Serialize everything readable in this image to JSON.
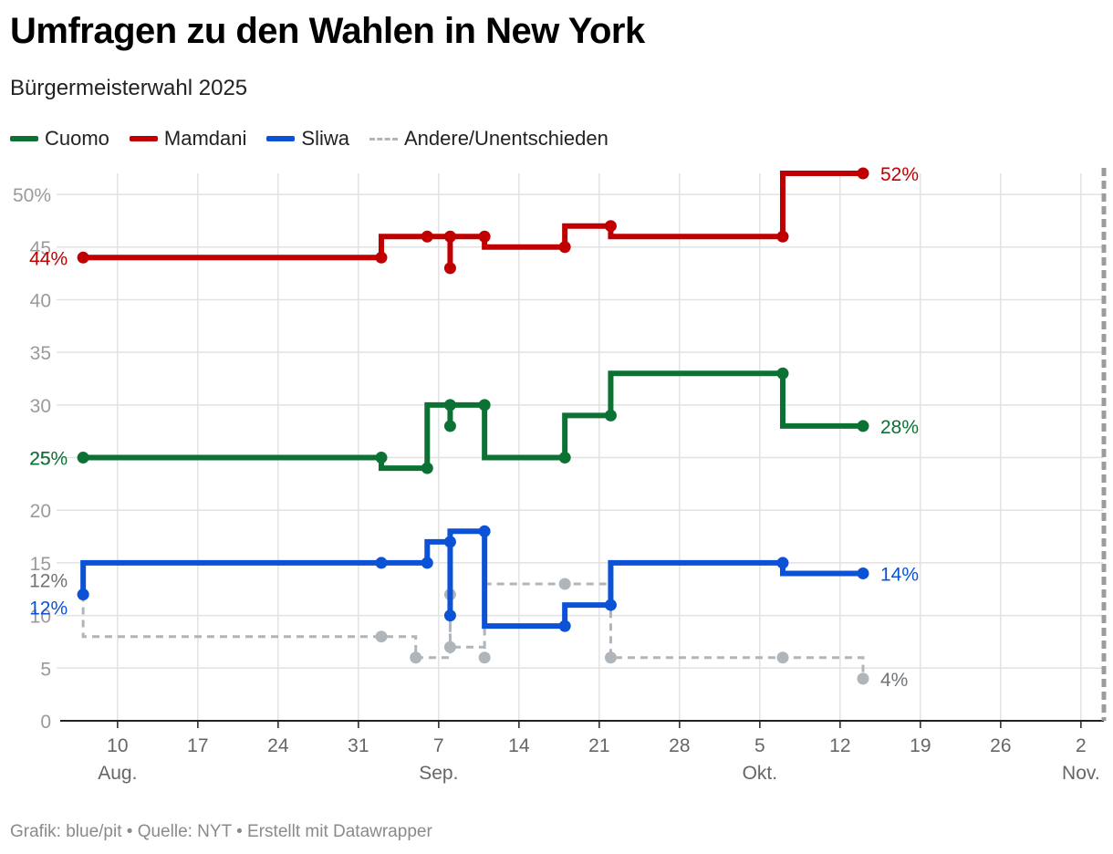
{
  "header": {
    "title": "Umfragen zu den Wahlen in New York",
    "subtitle": "Bürgermeisterwahl 2025"
  },
  "footer": {
    "credit": "Grafik: blue/pit • Quelle: NYT • Erstellt mit Datawrapper"
  },
  "chart_data": {
    "type": "line",
    "step": true,
    "title": "Umfragen zu den Wahlen in New York",
    "subtitle": "Bürgermeisterwahl 2025",
    "x_scale": "date",
    "xlim": [
      "2025-08-05",
      "2025-11-04"
    ],
    "ylim": [
      0,
      52
    ],
    "y_ticks": [
      0,
      5,
      10,
      15,
      20,
      25,
      30,
      35,
      40,
      45,
      50
    ],
    "y_tick_labels": [
      "0",
      "5",
      "10",
      "15",
      "20",
      "25",
      "30",
      "35",
      "40",
      "45",
      "50%"
    ],
    "x_ticks": [
      "2025-08-10",
      "2025-08-17",
      "2025-08-24",
      "2025-08-31",
      "2025-09-07",
      "2025-09-14",
      "2025-09-21",
      "2025-09-28",
      "2025-10-05",
      "2025-10-12",
      "2025-10-19",
      "2025-10-26",
      "2025-11-02"
    ],
    "x_tick_labels": [
      "10",
      "17",
      "24",
      "31",
      "7",
      "14",
      "21",
      "28",
      "5",
      "12",
      "19",
      "26",
      "2"
    ],
    "month_labels": [
      {
        "date": "2025-08-10",
        "label": "Aug."
      },
      {
        "date": "2025-09-07",
        "label": "Sep."
      },
      {
        "date": "2025-10-05",
        "label": "Okt."
      },
      {
        "date": "2025-11-02",
        "label": "Nov."
      }
    ],
    "election_marker": "2025-11-04",
    "grid": true,
    "legend": "top-left",
    "series": [
      {
        "name": "Andere/Unentschieden",
        "color": "#b0b5ba",
        "dashed": true,
        "points": [
          {
            "x": "2025-08-07",
            "y": 12
          },
          {
            "x": "2025-08-07",
            "y": 8,
            "dot": false
          },
          {
            "x": "2025-09-02",
            "y": 8
          },
          {
            "x": "2025-09-05",
            "y": 6
          },
          {
            "x": "2025-09-08",
            "y": 12
          },
          {
            "x": "2025-09-08",
            "y": 7
          },
          {
            "x": "2025-09-11",
            "y": 6
          },
          {
            "x": "2025-09-11",
            "y": 13,
            "dot": false
          },
          {
            "x": "2025-09-18",
            "y": 13
          },
          {
            "x": "2025-09-22",
            "y": 6
          },
          {
            "x": "2025-10-07",
            "y": 6
          },
          {
            "x": "2025-10-14",
            "y": 4
          }
        ],
        "start_label": "12%",
        "end_label": "4%"
      },
      {
        "name": "Cuomo",
        "color": "#0c7234",
        "dashed": false,
        "points": [
          {
            "x": "2025-08-07",
            "y": 25
          },
          {
            "x": "2025-09-02",
            "y": 25
          },
          {
            "x": "2025-09-02",
            "y": 24,
            "dot": false
          },
          {
            "x": "2025-09-06",
            "y": 24
          },
          {
            "x": "2025-09-06",
            "y": 30,
            "dot": false
          },
          {
            "x": "2025-09-08",
            "y": 30
          },
          {
            "x": "2025-09-08",
            "y": 28
          },
          {
            "x": "2025-09-08",
            "y": 30,
            "dot": false
          },
          {
            "x": "2025-09-11",
            "y": 30
          },
          {
            "x": "2025-09-11",
            "y": 25,
            "dot": false
          },
          {
            "x": "2025-09-18",
            "y": 25
          },
          {
            "x": "2025-09-18",
            "y": 29,
            "dot": false
          },
          {
            "x": "2025-09-22",
            "y": 29
          },
          {
            "x": "2025-09-22",
            "y": 33,
            "dot": false
          },
          {
            "x": "2025-10-07",
            "y": 33
          },
          {
            "x": "2025-10-07",
            "y": 28,
            "dot": false
          },
          {
            "x": "2025-10-14",
            "y": 28
          }
        ],
        "start_label": "25%",
        "end_label": "28%"
      },
      {
        "name": "Sliwa",
        "color": "#0b52d6",
        "dashed": false,
        "points": [
          {
            "x": "2025-08-07",
            "y": 12
          },
          {
            "x": "2025-08-07",
            "y": 15,
            "dot": false
          },
          {
            "x": "2025-09-02",
            "y": 15
          },
          {
            "x": "2025-09-06",
            "y": 15
          },
          {
            "x": "2025-09-06",
            "y": 17,
            "dot": false
          },
          {
            "x": "2025-09-08",
            "y": 17
          },
          {
            "x": "2025-09-08",
            "y": 10
          },
          {
            "x": "2025-09-08",
            "y": 18,
            "dot": false
          },
          {
            "x": "2025-09-11",
            "y": 18
          },
          {
            "x": "2025-09-11",
            "y": 9,
            "dot": false
          },
          {
            "x": "2025-09-18",
            "y": 9
          },
          {
            "x": "2025-09-18",
            "y": 11,
            "dot": false
          },
          {
            "x": "2025-09-22",
            "y": 11
          },
          {
            "x": "2025-09-22",
            "y": 15,
            "dot": false
          },
          {
            "x": "2025-10-07",
            "y": 15
          },
          {
            "x": "2025-10-07",
            "y": 14,
            "dot": false
          },
          {
            "x": "2025-10-14",
            "y": 14
          }
        ],
        "start_label": "12%",
        "end_label": "14%"
      },
      {
        "name": "Mamdani",
        "color": "#c00000",
        "dashed": false,
        "points": [
          {
            "x": "2025-08-07",
            "y": 44
          },
          {
            "x": "2025-09-02",
            "y": 44
          },
          {
            "x": "2025-09-02",
            "y": 46,
            "dot": false
          },
          {
            "x": "2025-09-06",
            "y": 46
          },
          {
            "x": "2025-09-08",
            "y": 46
          },
          {
            "x": "2025-09-08",
            "y": 43
          },
          {
            "x": "2025-09-08",
            "y": 46,
            "dot": false
          },
          {
            "x": "2025-09-11",
            "y": 46
          },
          {
            "x": "2025-09-11",
            "y": 45,
            "dot": false
          },
          {
            "x": "2025-09-18",
            "y": 45
          },
          {
            "x": "2025-09-18",
            "y": 47,
            "dot": false
          },
          {
            "x": "2025-09-22",
            "y": 47
          },
          {
            "x": "2025-09-22",
            "y": 46,
            "dot": false
          },
          {
            "x": "2025-10-07",
            "y": 46
          },
          {
            "x": "2025-10-07",
            "y": 52,
            "dot": false
          },
          {
            "x": "2025-10-14",
            "y": 52
          }
        ],
        "start_label": "44%",
        "end_label": "52%"
      }
    ],
    "legend_order": [
      "Cuomo",
      "Mamdani",
      "Sliwa",
      "Andere/Unentschieden"
    ],
    "axis_color": "#222222",
    "grid_color": "#e2e2e2",
    "tick_color": "#9a9a9a"
  }
}
